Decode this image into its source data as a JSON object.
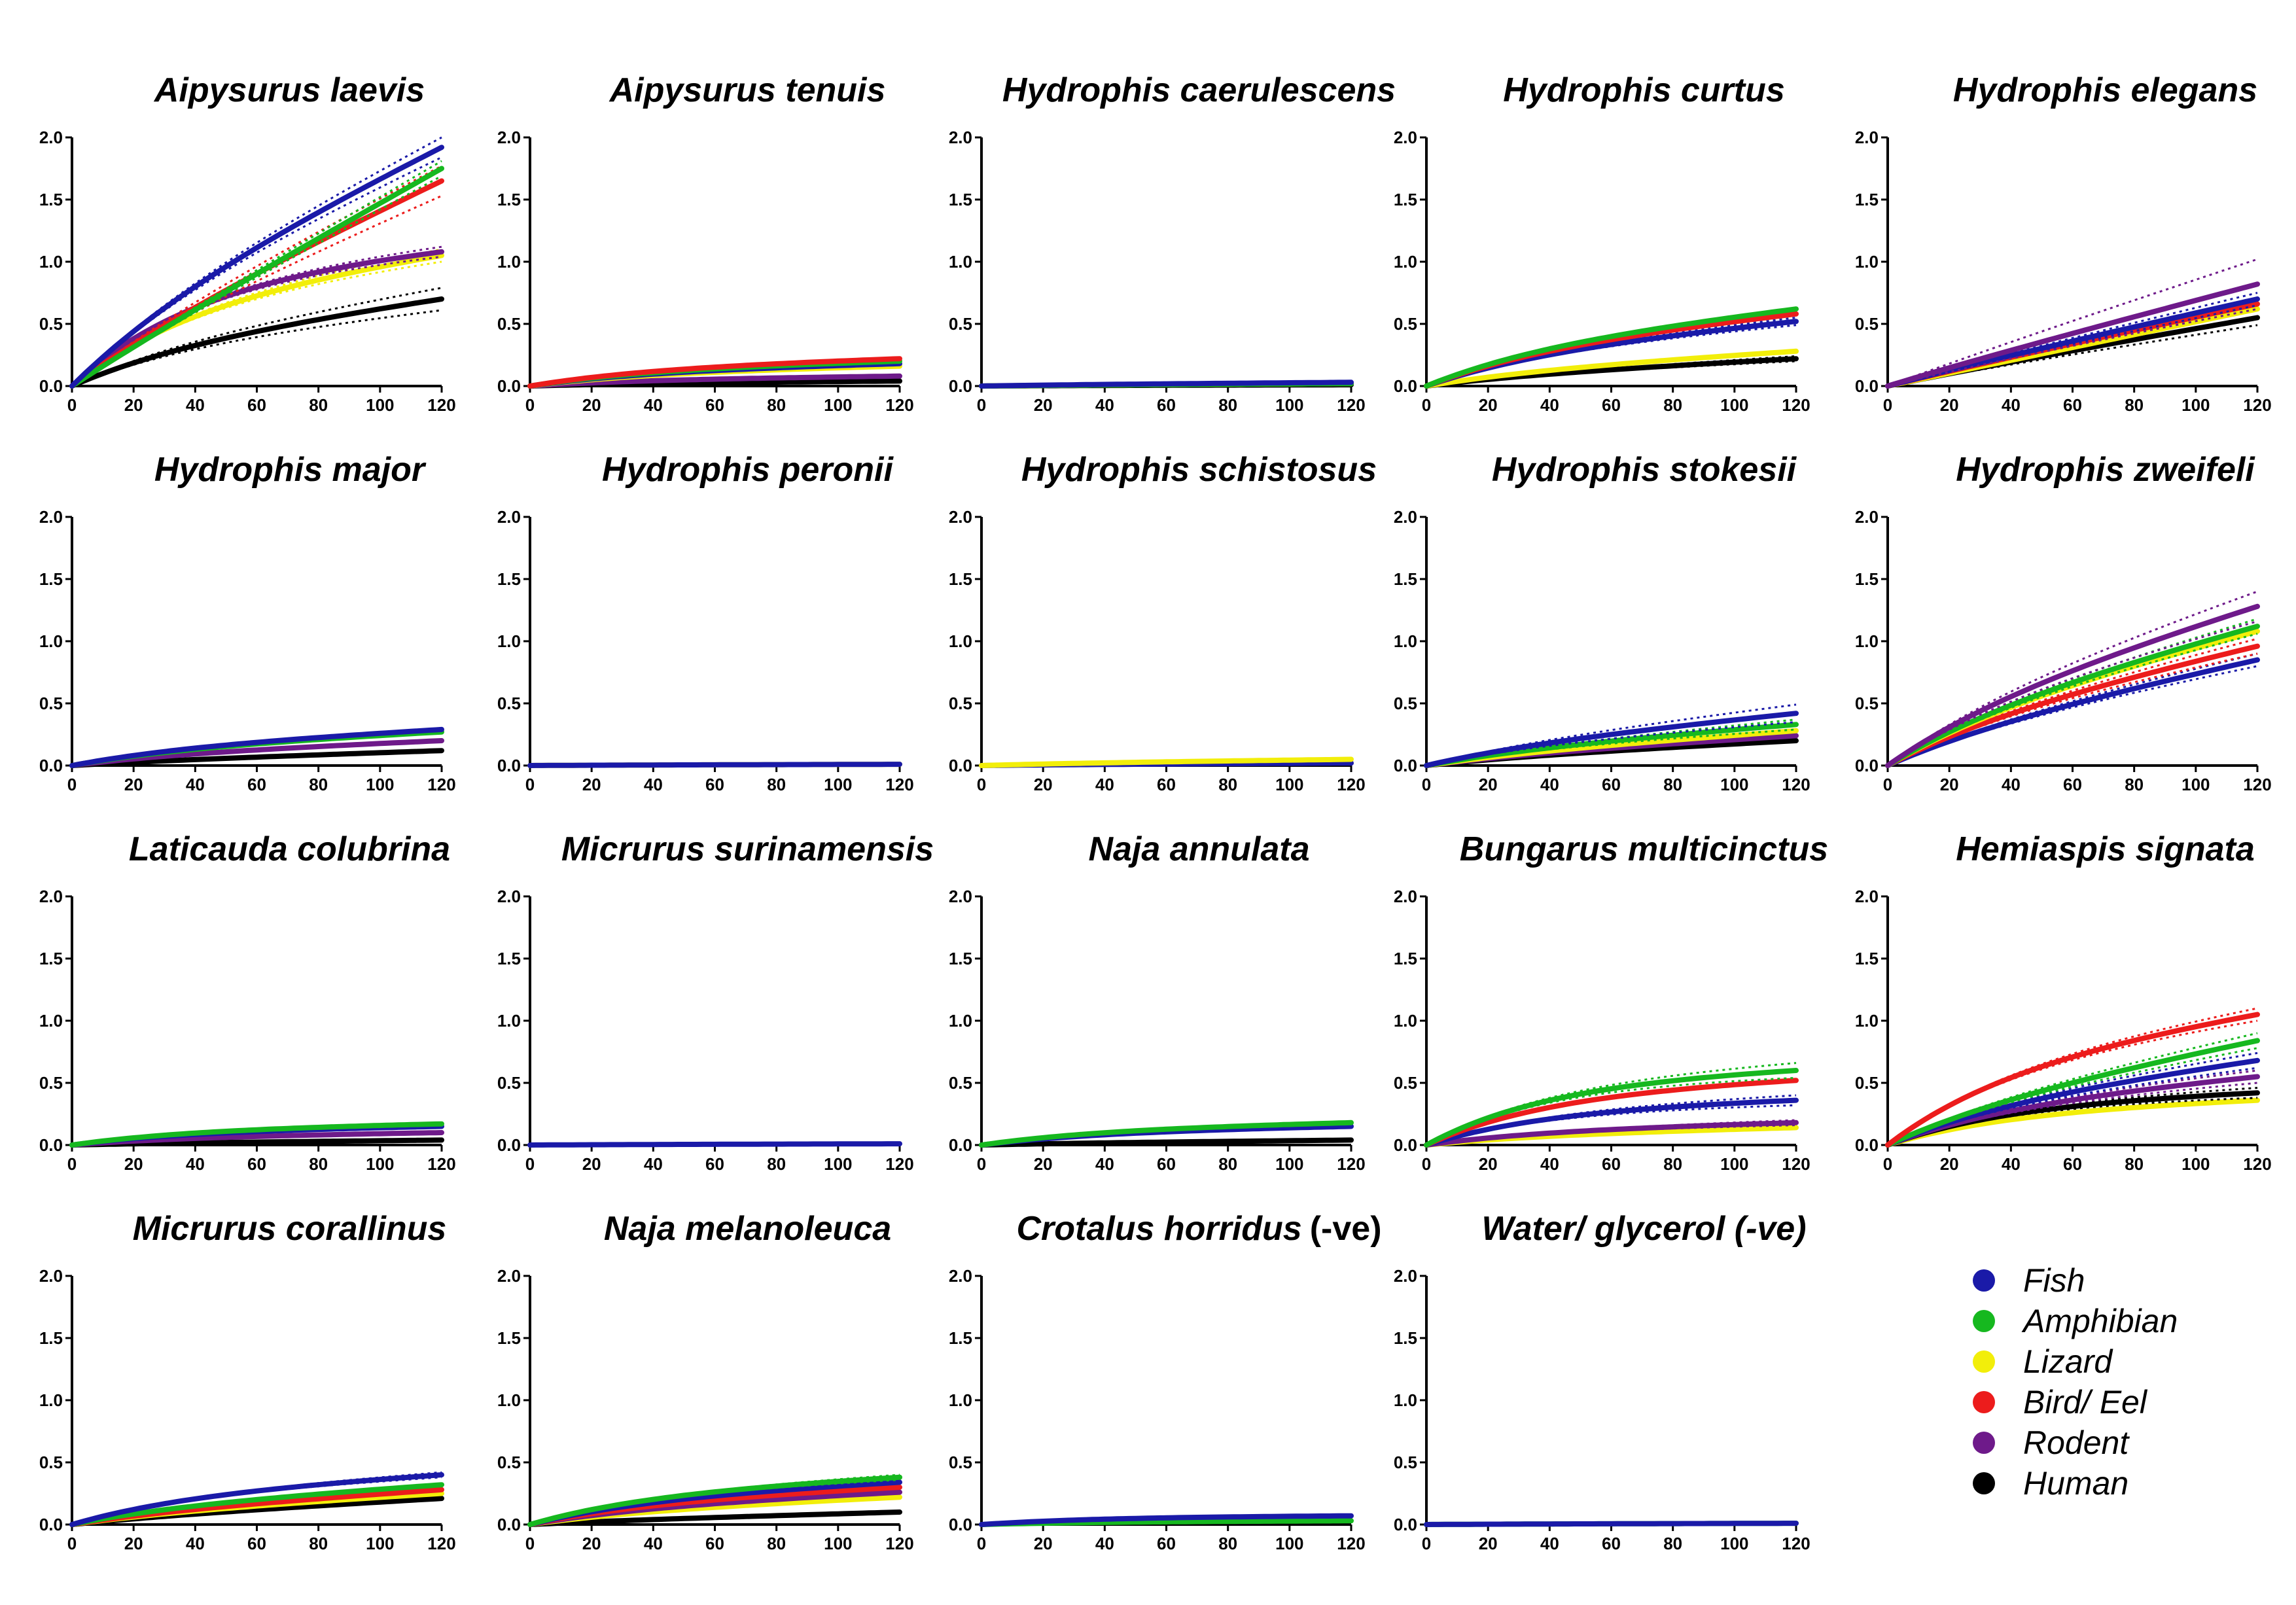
{
  "series_colors": {
    "Fish": "#1a1aa8",
    "Amphibian": "#16b81f",
    "Lizard": "#f2ee0a",
    "Bird/ Eel": "#ec1c1c",
    "Rodent": "#6e1a8a",
    "Human": "#000000"
  },
  "legend": [
    "Fish",
    "Amphibian",
    "Lizard",
    "Bird/ Eel",
    "Rodent",
    "Human"
  ],
  "x_ticks": [
    "0",
    "20",
    "40",
    "60",
    "80",
    "100",
    "120"
  ],
  "y_ticks": [
    "0.0",
    "0.5",
    "1.0",
    "1.5",
    "2.0"
  ],
  "chart_data": [
    {
      "type": "line",
      "title": "Aipysurus laevis",
      "x": [
        0,
        120
      ],
      "ylim": [
        0,
        2.0
      ],
      "xlim": [
        0,
        120
      ],
      "series": [
        {
          "name": "Human",
          "final": 0.7,
          "shape": 0.4,
          "band": 0.09
        },
        {
          "name": "Lizard",
          "final": 1.05,
          "shape": 0.6,
          "band": 0.05
        },
        {
          "name": "Rodent",
          "final": 1.08,
          "shape": 0.75,
          "band": 0.04
        },
        {
          "name": "Bird/ Eel",
          "final": 1.65,
          "shape": 0.15,
          "band": 0.12
        },
        {
          "name": "Amphibian",
          "final": 1.75,
          "shape": 0.05,
          "band": 0.06
        },
        {
          "name": "Fish",
          "final": 1.92,
          "shape": 0.25,
          "band": 0.08
        }
      ]
    },
    {
      "type": "line",
      "title": "Aipysurus tenuis",
      "x": [
        0,
        120
      ],
      "ylim": [
        0,
        2.0
      ],
      "xlim": [
        0,
        120
      ],
      "series": [
        {
          "name": "Human",
          "final": 0.04,
          "shape": 0.5,
          "band": 0
        },
        {
          "name": "Rodent",
          "final": 0.08,
          "shape": 0.6,
          "band": 0
        },
        {
          "name": "Lizard",
          "final": 0.16,
          "shape": 0.6,
          "band": 0
        },
        {
          "name": "Fish",
          "final": 0.18,
          "shape": 0.6,
          "band": 0
        },
        {
          "name": "Amphibian",
          "final": 0.2,
          "shape": 0.6,
          "band": 0
        },
        {
          "name": "Bird/ Eel",
          "final": 0.22,
          "shape": 0.6,
          "band": 0
        }
      ]
    },
    {
      "type": "line",
      "title": "Hydrophis caerulescens",
      "x": [
        0,
        120
      ],
      "ylim": [
        0,
        2.0
      ],
      "xlim": [
        0,
        120
      ],
      "series": [
        {
          "name": "Human",
          "final": 0.01,
          "shape": 0.3,
          "band": 0
        },
        {
          "name": "Lizard",
          "final": 0.02,
          "shape": 0.3,
          "band": 0
        },
        {
          "name": "Amphibian",
          "final": 0.02,
          "shape": 0.3,
          "band": 0
        },
        {
          "name": "Fish",
          "final": 0.03,
          "shape": 0.3,
          "band": 0
        }
      ]
    },
    {
      "type": "line",
      "title": "Hydrophis curtus",
      "x": [
        0,
        120
      ],
      "ylim": [
        0,
        2.0
      ],
      "xlim": [
        0,
        120
      ],
      "series": [
        {
          "name": "Human",
          "final": 0.22,
          "shape": 0.3,
          "band": 0.02
        },
        {
          "name": "Lizard",
          "final": 0.28,
          "shape": 0.35,
          "band": 0
        },
        {
          "name": "Fish",
          "final": 0.52,
          "shape": 0.45,
          "band": 0.03
        },
        {
          "name": "Bird/ Eel",
          "final": 0.58,
          "shape": 0.45,
          "band": 0
        },
        {
          "name": "Amphibian",
          "final": 0.62,
          "shape": 0.45,
          "band": 0
        }
      ]
    },
    {
      "type": "line",
      "title": "Hydrophis elegans",
      "x": [
        0,
        120
      ],
      "ylim": [
        0,
        2.0
      ],
      "xlim": [
        0,
        120
      ],
      "series": [
        {
          "name": "Human",
          "final": 0.55,
          "shape": 0.05,
          "band": 0.06
        },
        {
          "name": "Lizard",
          "final": 0.62,
          "shape": 0.0,
          "band": 0
        },
        {
          "name": "Bird/ Eel",
          "final": 0.66,
          "shape": 0.05,
          "band": 0
        },
        {
          "name": "Fish",
          "final": 0.7,
          "shape": 0.05,
          "band": 0.05
        },
        {
          "name": "Rodent",
          "final": 0.82,
          "shape": 0.05,
          "band": 0.2
        }
      ]
    },
    {
      "type": "line",
      "title": "Hydrophis major",
      "x": [
        0,
        120
      ],
      "ylim": [
        0,
        2.0
      ],
      "xlim": [
        0,
        120
      ],
      "series": [
        {
          "name": "Human",
          "final": 0.12,
          "shape": 0.2,
          "band": 0
        },
        {
          "name": "Rodent",
          "final": 0.2,
          "shape": 0.4,
          "band": 0
        },
        {
          "name": "Amphibian",
          "final": 0.27,
          "shape": 0.45,
          "band": 0
        },
        {
          "name": "Fish",
          "final": 0.29,
          "shape": 0.45,
          "band": 0
        }
      ]
    },
    {
      "type": "line",
      "title": "Hydrophis peronii",
      "x": [
        0,
        120
      ],
      "ylim": [
        0,
        2.0
      ],
      "xlim": [
        0,
        120
      ],
      "series": [
        {
          "name": "Lizard",
          "final": 0.01,
          "shape": 0.3,
          "band": 0
        },
        {
          "name": "Fish",
          "final": 0.01,
          "shape": 0.3,
          "band": 0
        }
      ]
    },
    {
      "type": "line",
      "title": "Hydrophis schistosus",
      "x": [
        0,
        120
      ],
      "ylim": [
        0,
        2.0
      ],
      "xlim": [
        0,
        120
      ],
      "series": [
        {
          "name": "Fish",
          "final": 0.02,
          "shape": 0.3,
          "band": 0
        },
        {
          "name": "Lizard",
          "final": 0.05,
          "shape": 0.3,
          "band": 0
        }
      ]
    },
    {
      "type": "line",
      "title": "Hydrophis stokesii",
      "x": [
        0,
        120
      ],
      "ylim": [
        0,
        2.0
      ],
      "xlim": [
        0,
        120
      ],
      "series": [
        {
          "name": "Human",
          "final": 0.2,
          "shape": 0.25,
          "band": 0
        },
        {
          "name": "Rodent",
          "final": 0.24,
          "shape": 0.25,
          "band": 0
        },
        {
          "name": "Lizard",
          "final": 0.28,
          "shape": 0.25,
          "band": 0
        },
        {
          "name": "Amphibian",
          "final": 0.33,
          "shape": 0.3,
          "band": 0.04
        },
        {
          "name": "Fish",
          "final": 0.42,
          "shape": 0.3,
          "band": 0.07
        }
      ]
    },
    {
      "type": "line",
      "title": "Hydrophis zweifeli",
      "x": [
        0,
        120
      ],
      "ylim": [
        0,
        2.0
      ],
      "xlim": [
        0,
        120
      ],
      "series": [
        {
          "name": "Fish",
          "final": 0.85,
          "shape": 0.25,
          "band": 0.05
        },
        {
          "name": "Bird/ Eel",
          "final": 0.96,
          "shape": 0.3,
          "band": 0.06
        },
        {
          "name": "Lizard",
          "final": 1.08,
          "shape": 0.3,
          "band": 0
        },
        {
          "name": "Amphibian",
          "final": 1.12,
          "shape": 0.3,
          "band": 0.06
        },
        {
          "name": "Rodent",
          "final": 1.28,
          "shape": 0.3,
          "band": 0.12
        }
      ]
    },
    {
      "type": "line",
      "title": "Laticauda colubrina",
      "x": [
        0,
        120
      ],
      "ylim": [
        0,
        2.0
      ],
      "xlim": [
        0,
        120
      ],
      "series": [
        {
          "name": "Human",
          "final": 0.04,
          "shape": 0.3,
          "band": 0
        },
        {
          "name": "Rodent",
          "final": 0.1,
          "shape": 0.6,
          "band": 0
        },
        {
          "name": "Fish",
          "final": 0.15,
          "shape": 0.7,
          "band": 0
        },
        {
          "name": "Amphibian",
          "final": 0.17,
          "shape": 0.7,
          "band": 0
        }
      ]
    },
    {
      "type": "line",
      "title": "Micrurus surinamensis",
      "x": [
        0,
        120
      ],
      "ylim": [
        0,
        2.0
      ],
      "xlim": [
        0,
        120
      ],
      "series": [
        {
          "name": "Fish",
          "final": 0.01,
          "shape": 0.3,
          "band": 0
        }
      ]
    },
    {
      "type": "line",
      "title": "Naja annulata",
      "x": [
        0,
        120
      ],
      "ylim": [
        0,
        2.0
      ],
      "xlim": [
        0,
        120
      ],
      "series": [
        {
          "name": "Human",
          "final": 0.04,
          "shape": 0.3,
          "band": 0
        },
        {
          "name": "Fish",
          "final": 0.15,
          "shape": 0.65,
          "band": 0
        },
        {
          "name": "Amphibian",
          "final": 0.18,
          "shape": 0.65,
          "band": 0
        }
      ]
    },
    {
      "type": "line",
      "title": "Bungarus multicinctus",
      "x": [
        0,
        120
      ],
      "ylim": [
        0,
        2.0
      ],
      "xlim": [
        0,
        120
      ],
      "series": [
        {
          "name": "Lizard",
          "final": 0.14,
          "shape": 0.5,
          "band": 0
        },
        {
          "name": "Rodent",
          "final": 0.18,
          "shape": 0.6,
          "band": 0.02
        },
        {
          "name": "Fish",
          "final": 0.36,
          "shape": 0.75,
          "band": 0.04
        },
        {
          "name": "Bird/ Eel",
          "final": 0.52,
          "shape": 0.75,
          "band": 0
        },
        {
          "name": "Amphibian",
          "final": 0.6,
          "shape": 0.8,
          "band": 0.06
        }
      ]
    },
    {
      "type": "line",
      "title": "Hemiaspis signata",
      "x": [
        0,
        120
      ],
      "ylim": [
        0,
        2.0
      ],
      "xlim": [
        0,
        120
      ],
      "series": [
        {
          "name": "Lizard",
          "final": 0.36,
          "shape": 0.7,
          "band": 0
        },
        {
          "name": "Human",
          "final": 0.42,
          "shape": 0.75,
          "band": 0.04
        },
        {
          "name": "Rodent",
          "final": 0.55,
          "shape": 0.5,
          "band": 0.05
        },
        {
          "name": "Fish",
          "final": 0.68,
          "shape": 0.4,
          "band": 0.06
        },
        {
          "name": "Amphibian",
          "final": 0.84,
          "shape": 0.3,
          "band": 0.06
        },
        {
          "name": "Bird/ Eel",
          "final": 1.05,
          "shape": 0.55,
          "band": 0.05
        }
      ]
    },
    {
      "type": "line",
      "title": "Micrurus corallinus",
      "x": [
        0,
        120
      ],
      "ylim": [
        0,
        2.0
      ],
      "xlim": [
        0,
        120
      ],
      "series": [
        {
          "name": "Human",
          "final": 0.21,
          "shape": 0.2,
          "band": 0
        },
        {
          "name": "Lizard",
          "final": 0.25,
          "shape": 0.3,
          "band": 0
        },
        {
          "name": "Bird/ Eel",
          "final": 0.28,
          "shape": 0.3,
          "band": 0
        },
        {
          "name": "Amphibian",
          "final": 0.32,
          "shape": 0.4,
          "band": 0
        },
        {
          "name": "Fish",
          "final": 0.4,
          "shape": 0.55,
          "band": 0.02
        }
      ]
    },
    {
      "type": "line",
      "title": "Naja melanoleuca",
      "x": [
        0,
        120
      ],
      "ylim": [
        0,
        2.0
      ],
      "xlim": [
        0,
        120
      ],
      "series": [
        {
          "name": "Human",
          "final": 0.1,
          "shape": 0.2,
          "band": 0
        },
        {
          "name": "Lizard",
          "final": 0.22,
          "shape": 0.4,
          "band": 0
        },
        {
          "name": "Rodent",
          "final": 0.26,
          "shape": 0.45,
          "band": 0
        },
        {
          "name": "Bird/ Eel",
          "final": 0.3,
          "shape": 0.5,
          "band": 0
        },
        {
          "name": "Fish",
          "final": 0.34,
          "shape": 0.55,
          "band": 0
        },
        {
          "name": "Amphibian",
          "final": 0.38,
          "shape": 0.6,
          "band": 0.02
        }
      ]
    },
    {
      "type": "line",
      "title": "Crotalus horridus",
      "title_suffix": "(-ve)",
      "x": [
        0,
        120
      ],
      "ylim": [
        0,
        2.0
      ],
      "xlim": [
        0,
        120
      ],
      "series": [
        {
          "name": "Amphibian",
          "final": 0.03,
          "shape": 0.7,
          "band": 0
        },
        {
          "name": "Fish",
          "final": 0.07,
          "shape": 0.85,
          "band": 0
        }
      ]
    },
    {
      "type": "line",
      "title": "Water/ glycerol (-ve)",
      "x": [
        0,
        120
      ],
      "ylim": [
        0,
        2.0
      ],
      "xlim": [
        0,
        120
      ],
      "series": [
        {
          "name": "Amphibian",
          "final": 0.01,
          "shape": 0.3,
          "band": 0
        },
        {
          "name": "Fish",
          "final": 0.01,
          "shape": 0.3,
          "band": 0
        }
      ]
    }
  ]
}
